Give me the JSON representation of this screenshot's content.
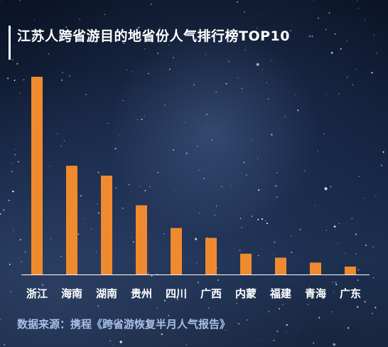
{
  "title": "江苏人跨省游目的地省份人气排行榜TOP10",
  "source": "数据来源：携程《跨省游恢复半月人气报告》",
  "colors": {
    "bar": "#f08a2f",
    "axis": "#ffffff",
    "text": "#ffffff",
    "source": "#a9bfe6"
  },
  "chart_data": {
    "type": "bar",
    "title": "江苏人跨省游目的地省份人气排行榜TOP10",
    "categories": [
      "浙江",
      "海南",
      "湖南",
      "贵州",
      "四川",
      "广西",
      "内蒙",
      "福建",
      "青海",
      "广东"
    ],
    "values": [
      100,
      55,
      50,
      35,
      23.5,
      18.5,
      10.5,
      8.5,
      6,
      4
    ],
    "ylim": [
      0,
      100
    ],
    "grid": false,
    "legend": "none",
    "xlabel": "",
    "ylabel": ""
  }
}
